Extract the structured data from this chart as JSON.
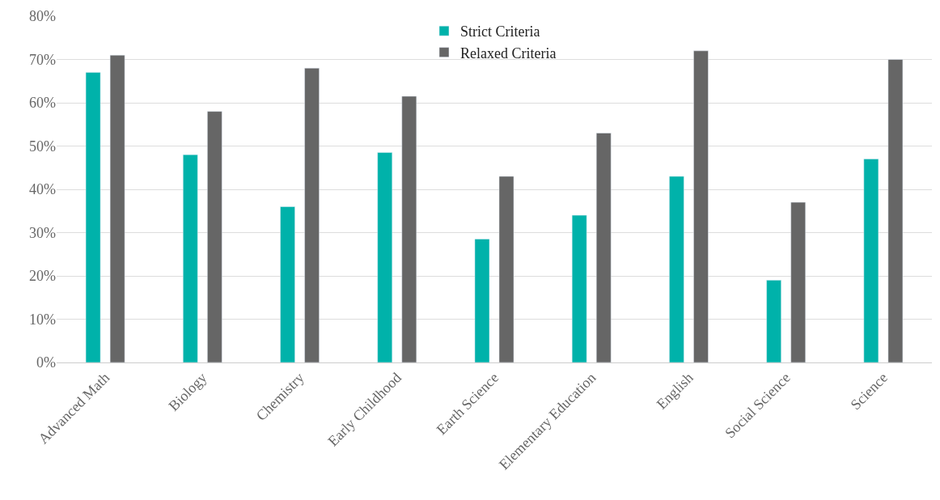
{
  "chart_data": {
    "type": "bar",
    "categories": [
      "Advanced Math",
      "Biology",
      "Chemistry",
      "Early Childhood",
      "Earth Science",
      "Elementary Education",
      "English",
      "Social Science",
      "Science"
    ],
    "series": [
      {
        "name": "Strict Criteria",
        "color": "#00b2aa",
        "values": [
          67,
          48,
          36,
          48.5,
          28.5,
          34,
          43,
          19,
          47
        ]
      },
      {
        "name": "Relaxed Criteria",
        "color": "#666666",
        "values": [
          71,
          58,
          68,
          61.5,
          43,
          53,
          72,
          37,
          70
        ]
      }
    ],
    "ylim": [
      0,
      80
    ],
    "yticks": [
      {
        "value": 0,
        "label": "0%"
      },
      {
        "value": 10,
        "label": "10%"
      },
      {
        "value": 20,
        "label": "20%"
      },
      {
        "value": 30,
        "label": "30%"
      },
      {
        "value": 40,
        "label": "40%"
      },
      {
        "value": 50,
        "label": "50%"
      },
      {
        "value": 60,
        "label": "60%"
      },
      {
        "value": 70,
        "label": "70%"
      },
      {
        "value": 80,
        "label": "80%"
      }
    ],
    "grid": "y",
    "legend": "top"
  }
}
